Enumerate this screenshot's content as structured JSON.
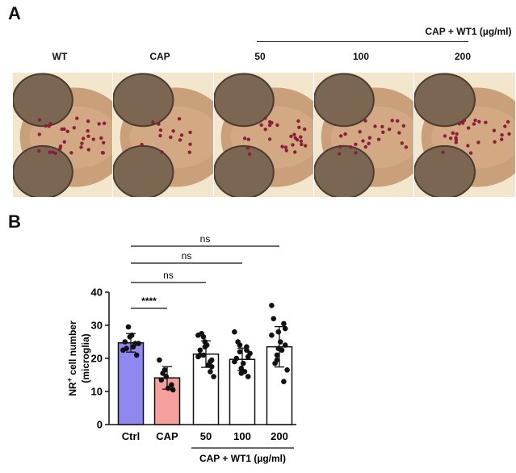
{
  "panel_a": {
    "letter": "A",
    "group_title": "CAP + WT1 (µg/ml)",
    "labels": [
      "WT",
      "CAP",
      "50",
      "100",
      "200"
    ],
    "images": [
      {
        "name": "WT",
        "dots": 32
      },
      {
        "name": "CAP",
        "dots": 14
      },
      {
        "name": "50",
        "dots": 28
      },
      {
        "name": "100",
        "dots": 24
      },
      {
        "name": "200",
        "dots": 26
      }
    ]
  },
  "panel_b": {
    "letter": "B"
  },
  "chart_data": {
    "type": "bar",
    "ylabel_prefix": "NR",
    "ylabel_sup": "+",
    "ylabel_suffix": " cell number",
    "ylabel_line2": "(microglia)",
    "ylim": [
      0,
      40
    ],
    "yticks": [
      0,
      10,
      20,
      30,
      40
    ],
    "categories": [
      "Ctrl",
      "CAP",
      "50",
      "100",
      "200"
    ],
    "group_label": "CAP + WT1 (µg/ml)",
    "bar_colors": [
      "#8e88f0",
      "#f4a09c",
      "#ffffff",
      "#ffffff",
      "#ffffff"
    ],
    "means": [
      24.7,
      14.1,
      21.3,
      19.7,
      23.5
    ],
    "sd": [
      2.8,
      3.4,
      4.0,
      3.4,
      6.1
    ],
    "points": [
      [
        22.5,
        29.5,
        26.5,
        24.5,
        21,
        25,
        23,
        27,
        23.5,
        24.5
      ],
      [
        19.5,
        16.5,
        14.5,
        12,
        10.5,
        13.5,
        15.5,
        11
      ],
      [
        27,
        21,
        25,
        16,
        19.5,
        22.5,
        27.5,
        24,
        18,
        14.5,
        20.5,
        26.5,
        23.5,
        19,
        17.5,
        21
      ],
      [
        28,
        22,
        17,
        23.5,
        14.5,
        20,
        25,
        18.5,
        16,
        21.5,
        19,
        24,
        15.5,
        22.5,
        20.5
      ],
      [
        36,
        21,
        28,
        13,
        29,
        32,
        18.5,
        25,
        22.5,
        16.5,
        27,
        19.5,
        23,
        30.5,
        24
      ]
    ],
    "significance": [
      {
        "from": 0,
        "to": 1,
        "label": "****"
      },
      {
        "from": 0,
        "to": 2,
        "label": "ns"
      },
      {
        "from": 0,
        "to": 3,
        "label": "ns"
      },
      {
        "from": 0,
        "to": 4,
        "label": "ns"
      }
    ]
  }
}
